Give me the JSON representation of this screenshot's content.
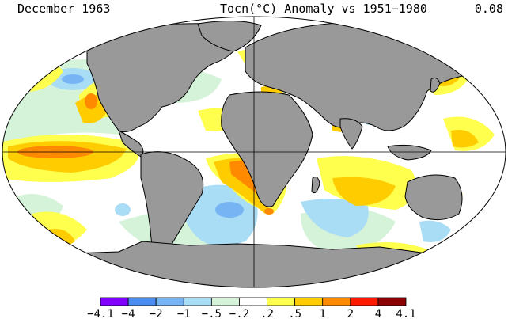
{
  "header": {
    "left": "December 1963",
    "center": "Tocn(°C) Anomaly vs 1951−1980",
    "right": "0.08"
  },
  "legend": {
    "bins": [
      {
        "color": "#8000ff"
      },
      {
        "color": "#4a8cf0"
      },
      {
        "color": "#76b4f4"
      },
      {
        "color": "#a9dcf5"
      },
      {
        "color": "#d5f3d9"
      },
      {
        "color": "#ffffff"
      },
      {
        "color": "#ffff4d"
      },
      {
        "color": "#ffcc00"
      },
      {
        "color": "#ff8a00"
      },
      {
        "color": "#ff1a00"
      },
      {
        "color": "#8b0000"
      }
    ],
    "ticks": [
      "−4.1",
      "−4",
      "−2",
      "−1",
      "−.5",
      "−.2",
      ".2",
      ".5",
      "1",
      "2",
      "4",
      "4.1"
    ]
  },
  "colors": {
    "land": "#999999",
    "no_data": "#999999"
  }
}
